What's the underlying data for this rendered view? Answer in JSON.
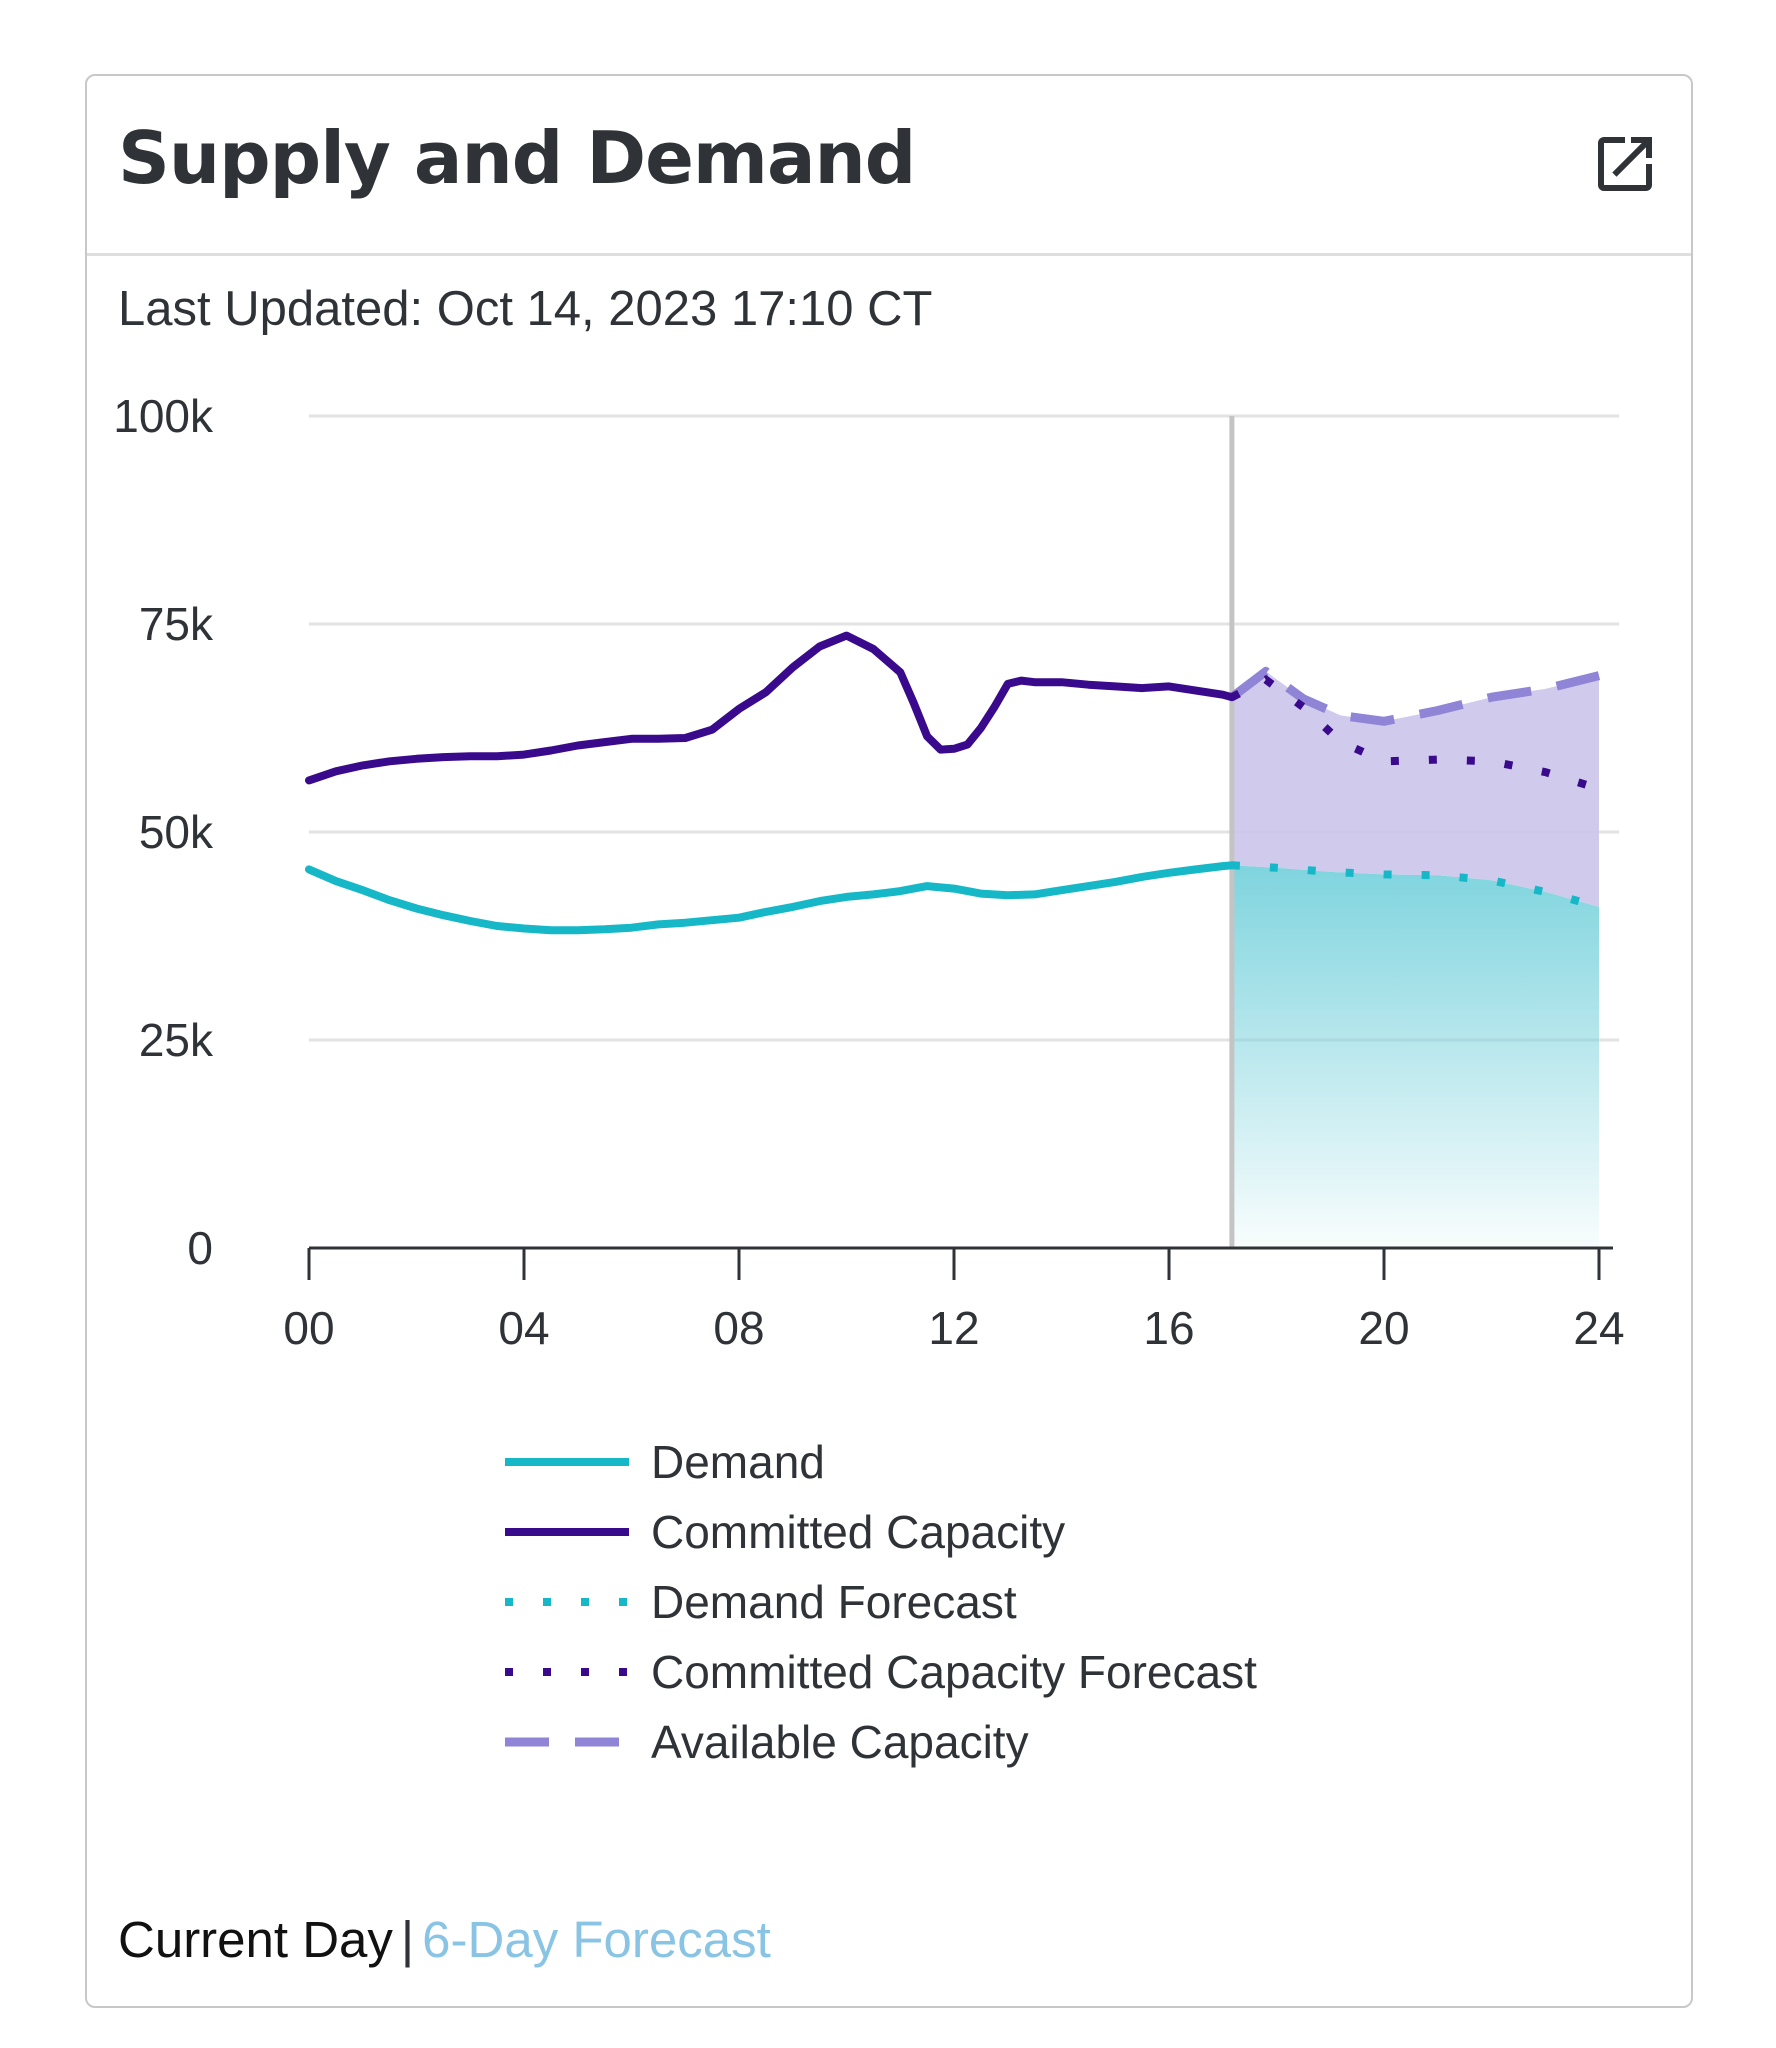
{
  "card": {
    "title": "Supply and Demand",
    "last_updated": "Last Updated: Oct 14, 2023 17:10 CT",
    "popout_icon": "external-link-icon"
  },
  "footer": {
    "current_label": "Current Day",
    "separator": "|",
    "forecast_link": "6-Day Forecast"
  },
  "colors": {
    "demand": "#16b8c8",
    "committed": "#3a0a8c",
    "available": "#8f84d6",
    "available_fill": "#cbc5ea",
    "demand_fill_top": "#7fd4de",
    "now_line": "#c4c4c4",
    "grid": "#e3e3e3",
    "axis": "#2f3338",
    "link": "#89c4e4"
  },
  "chart_data": {
    "type": "line",
    "xlim": [
      0,
      24
    ],
    "ylim": [
      0,
      100000
    ],
    "x_ticks": [
      0,
      4,
      8,
      12,
      16,
      20,
      24
    ],
    "x_tick_labels": [
      "00",
      "04",
      "08",
      "12",
      "16",
      "20",
      "24"
    ],
    "y_ticks": [
      0,
      25000,
      50000,
      75000,
      100000
    ],
    "y_tick_labels": [
      "0",
      "25k",
      "50k",
      "75k",
      "100k"
    ],
    "grid": "horizontal",
    "legend_position": "bottom",
    "current_time": 17.17,
    "series": [
      {
        "name": "Demand",
        "style": "solid",
        "x": [
          0,
          0.5,
          1,
          1.5,
          2,
          2.5,
          3,
          3.5,
          4,
          4.5,
          5,
          5.5,
          6,
          6.5,
          7,
          7.5,
          8,
          8.5,
          9,
          9.5,
          10,
          10.5,
          11,
          11.5,
          12,
          12.5,
          13,
          13.5,
          14,
          14.5,
          15,
          15.5,
          16,
          16.5,
          17,
          17.17
        ],
        "y": [
          45500,
          44100,
          43000,
          41800,
          40800,
          40000,
          39300,
          38700,
          38400,
          38200,
          38200,
          38300,
          38500,
          38900,
          39100,
          39400,
          39700,
          40400,
          41000,
          41700,
          42200,
          42500,
          42900,
          43500,
          43200,
          42600,
          42400,
          42500,
          43000,
          43500,
          44000,
          44600,
          45100,
          45500,
          45900,
          46000
        ]
      },
      {
        "name": "Committed Capacity",
        "style": "solid",
        "x": [
          0,
          0.5,
          1,
          1.5,
          2,
          2.5,
          3,
          3.5,
          4,
          4.5,
          5,
          5.5,
          6,
          6.5,
          7,
          7.5,
          8,
          8.5,
          9,
          9.5,
          10,
          10.5,
          11,
          11.25,
          11.5,
          11.75,
          12,
          12.25,
          12.5,
          12.75,
          13,
          13.25,
          13.5,
          14,
          14.5,
          15,
          15.5,
          16,
          16.5,
          17,
          17.17
        ],
        "y": [
          56200,
          57300,
          58000,
          58500,
          58800,
          59000,
          59100,
          59100,
          59300,
          59800,
          60400,
          60800,
          61200,
          61200,
          61300,
          62300,
          64800,
          66800,
          69800,
          72300,
          73600,
          72000,
          69200,
          65500,
          61500,
          59900,
          60000,
          60500,
          62500,
          65000,
          67800,
          68200,
          68000,
          68000,
          67700,
          67500,
          67300,
          67500,
          67000,
          66500,
          66200
        ]
      },
      {
        "name": "Demand Forecast",
        "style": "dotted",
        "x": [
          17.17,
          18,
          19,
          20,
          21,
          22,
          23,
          24
        ],
        "y": [
          46000,
          45700,
          45200,
          44900,
          44800,
          44200,
          42800,
          41000
        ]
      },
      {
        "name": "Committed Capacity Forecast",
        "style": "dotted",
        "x": [
          17.17,
          17.8,
          18.5,
          19.2,
          20,
          21,
          22,
          23,
          24
        ],
        "y": [
          66200,
          68300,
          65000,
          60800,
          58500,
          58700,
          58500,
          57200,
          55200
        ]
      },
      {
        "name": "Available Capacity",
        "style": "dashed",
        "x": [
          17.17,
          17.8,
          18.5,
          19.2,
          20,
          21,
          22,
          23,
          24
        ],
        "y": [
          66200,
          69300,
          66000,
          64000,
          63300,
          64600,
          66200,
          67200,
          68800
        ]
      }
    ]
  }
}
